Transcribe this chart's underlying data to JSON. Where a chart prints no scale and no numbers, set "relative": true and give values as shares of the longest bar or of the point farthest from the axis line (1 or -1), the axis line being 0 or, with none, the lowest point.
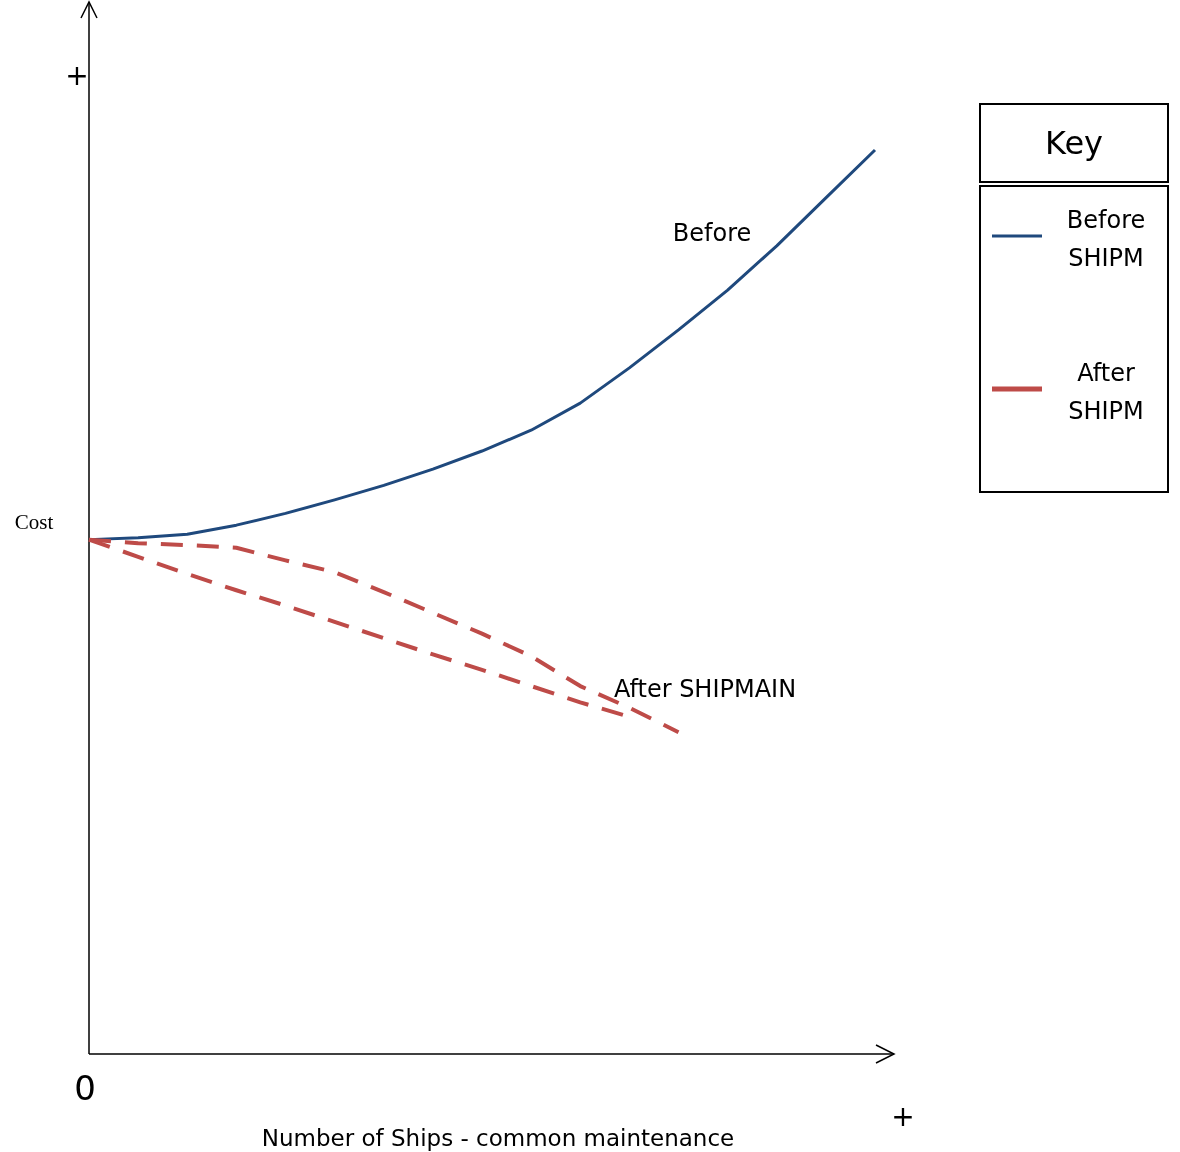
{
  "chart_data": {
    "type": "line",
    "relative": true,
    "xlabel": "Number of Ships - common maintenance",
    "ylabel": "Cost",
    "legend_title": "Key",
    "legend": "right",
    "annotations": [
      "+",
      "0",
      "+",
      "Before",
      "After SHIPMAIN"
    ],
    "categories": [
      null,
      null,
      null,
      null,
      null,
      null,
      null,
      null,
      null,
      null,
      null,
      null,
      null,
      null,
      null,
      null,
      null
    ],
    "series": [
      {
        "name": "Before SHIPM",
        "color": "#1f497d",
        "line_style": "solid",
        "values": [
          0.569,
          0.571,
          0.575,
          0.585,
          0.598,
          0.613,
          0.629,
          0.647,
          0.667,
          0.69,
          0.72,
          0.759,
          0.801,
          0.845,
          0.894,
          0.947,
          1
        ]
      },
      {
        "name": "After SHIPM",
        "color": "#be4b48",
        "line_style": "dashed",
        "values": [
          0.569,
          0.565,
          0.563,
          0.56,
          0.546,
          0.533,
          0.511,
          0.488,
          0.465,
          0.44,
          0.407,
          0.383,
          0.356,
          null,
          null,
          null,
          null
        ]
      },
      {
        "color": "#be4b48",
        "line_style": "dashed",
        "values": [
          0.569,
          0.55,
          0.531,
          0.513,
          0.496,
          0.478,
          0.46,
          0.442,
          0.425,
          0.407,
          0.389,
          0.373,
          null,
          null,
          null,
          null,
          null
        ]
      }
    ]
  }
}
